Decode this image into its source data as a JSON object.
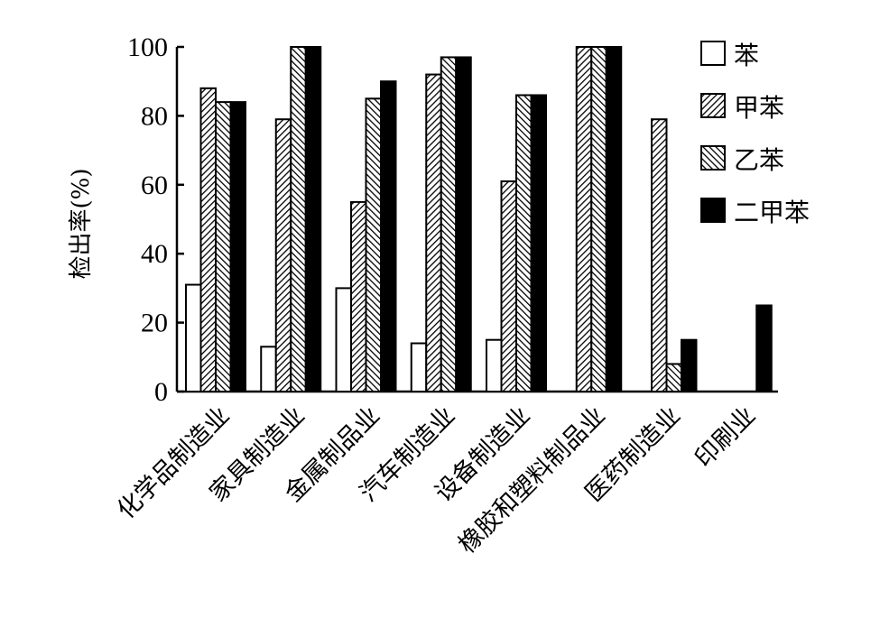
{
  "chart_data": {
    "type": "bar",
    "ylabel": "检出率(%)",
    "ylim": [
      0,
      100
    ],
    "yticks": [
      "0",
      "20",
      "40",
      "60",
      "80",
      "100"
    ],
    "categories": [
      "化学品制造业",
      "家具制造业",
      "金属制品业",
      "汽车制造业",
      "设备制造业",
      "橡胶和塑料制品业",
      "医药制造业",
      "印刷业"
    ],
    "series": [
      {
        "name": "苯",
        "pattern": "blank",
        "values": [
          31,
          13,
          30,
          14,
          15,
          0,
          0,
          0
        ]
      },
      {
        "name": "甲苯",
        "pattern": "hatch-forward",
        "values": [
          88,
          79,
          55,
          92,
          61,
          100,
          79,
          0
        ]
      },
      {
        "name": "乙苯",
        "pattern": "hatch-backward",
        "values": [
          84,
          100,
          85,
          97,
          86,
          100,
          8,
          0
        ]
      },
      {
        "name": "二甲苯",
        "pattern": "solid",
        "values": [
          84,
          100,
          90,
          97,
          86,
          100,
          15,
          25
        ]
      }
    ],
    "legend_position": "top-right",
    "grid": false
  }
}
